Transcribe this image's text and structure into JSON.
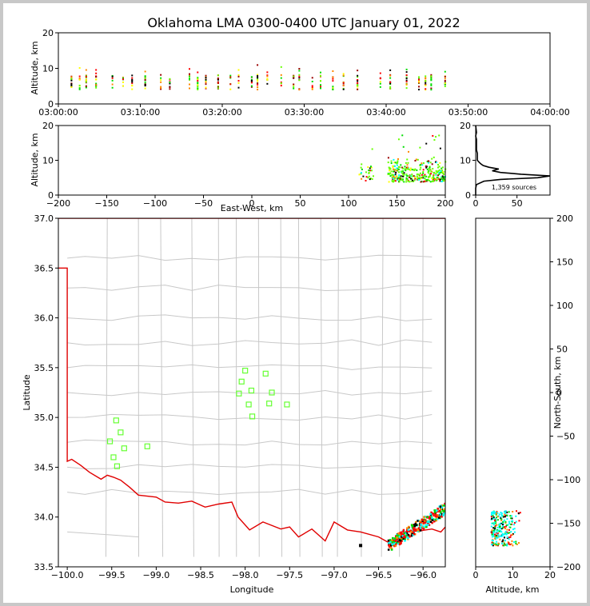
{
  "colors": {
    "frame": "#c8c8c8",
    "state_border": "#e00000",
    "county_lines": "#c8c8c8",
    "stations": "#66ff33",
    "source_palette": [
      "#00ffff",
      "#00dd00",
      "#66ff00",
      "#ffff00",
      "#ff8800",
      "#ff0000",
      "#990000",
      "#000000"
    ]
  },
  "chart_data": [
    {
      "panel": "altitude-time",
      "type": "scatter",
      "title": "Oklahoma LMA 0300-0400 UTC January 01, 2022",
      "ylabel": "Altitude, km",
      "xlim": [
        "03:00:00",
        "04:00:00"
      ],
      "ylim": [
        0,
        20
      ],
      "xticks": [
        "03:00:00",
        "03:10:00",
        "03:20:00",
        "03:30:00",
        "03:40:00",
        "03:50:00",
        "04:00:00"
      ],
      "yticks": [
        "0",
        "10",
        "20"
      ],
      "source_columns_min": [
        1.6,
        2.6,
        3.4,
        4.6,
        6.6,
        7.9,
        9.0,
        10.6,
        12.5,
        13.6,
        16.0,
        17.0,
        18.0,
        19.5,
        21.0,
        22.0,
        23.6,
        24.3,
        25.5,
        27.2,
        28.7,
        29.4,
        31.0,
        32.0,
        33.5,
        34.8,
        36.5,
        39.3,
        40.5,
        42.5,
        44.0,
        44.8,
        45.5,
        47.2
      ],
      "source_alt_range_km": [
        4,
        11
      ]
    },
    {
      "panel": "altitude-eastwest",
      "type": "scatter",
      "xlabel": "East-West, km",
      "ylabel": "Altitude, km",
      "xlim": [
        -200,
        200
      ],
      "ylim": [
        0,
        20
      ],
      "xticks": [
        "−200",
        "−150",
        "−100",
        "−50",
        "0",
        "50",
        "100",
        "150",
        "200"
      ],
      "yticks": [
        "0",
        "10",
        "20"
      ],
      "source_x_range_km": [
        110,
        200
      ],
      "source_alt_range_km": [
        4,
        12
      ]
    },
    {
      "panel": "altitude-histogram",
      "type": "line",
      "annotation": "1,359 sources",
      "xlim": [
        0,
        90
      ],
      "ylim": [
        0,
        20
      ],
      "xticks": [
        "0",
        "50"
      ],
      "yticks": [
        "0",
        "10",
        "20"
      ],
      "alt": [
        0,
        2,
        3,
        4,
        4.5,
        5,
        5.5,
        6,
        6.5,
        7,
        7.5,
        8,
        8.5,
        9,
        9.5,
        10,
        11,
        12,
        13,
        14,
        15,
        16,
        17,
        18,
        20
      ],
      "count": [
        0,
        0,
        1,
        10,
        30,
        75,
        90,
        55,
        30,
        20,
        28,
        16,
        9,
        6,
        4,
        2,
        2,
        2,
        1,
        1,
        1,
        1,
        0,
        1,
        0
      ]
    },
    {
      "panel": "plan-view",
      "type": "scatter",
      "xlabel": "Longitude",
      "ylabel": "Latitude",
      "xlim": [
        -100.1,
        -95.75
      ],
      "ylim": [
        33.5,
        37.0
      ],
      "xticks": [
        "−100.0",
        "−99.5",
        "−99.0",
        "−98.5",
        "−98.0",
        "−97.5",
        "−97.0",
        "−96.5",
        "−96.0"
      ],
      "yticks": [
        "33.5",
        "34.0",
        "34.5",
        "35.0",
        "35.5",
        "36.0",
        "36.5",
        "37.0"
      ],
      "stations": [
        [
          -99.45,
          34.97
        ],
        [
          -99.4,
          34.85
        ],
        [
          -99.52,
          34.76
        ],
        [
          -99.36,
          34.69
        ],
        [
          -99.48,
          34.6
        ],
        [
          -99.44,
          34.51
        ],
        [
          -99.1,
          34.71
        ],
        [
          -98.0,
          35.47
        ],
        [
          -98.04,
          35.36
        ],
        [
          -98.07,
          35.24
        ],
        [
          -97.93,
          35.27
        ],
        [
          -97.96,
          35.13
        ],
        [
          -97.92,
          35.01
        ],
        [
          -97.77,
          35.44
        ],
        [
          -97.7,
          35.25
        ],
        [
          -97.73,
          35.14
        ],
        [
          -97.53,
          35.13
        ]
      ],
      "source_cluster": {
        "lon_range": [
          -96.75,
          -95.75
        ],
        "lat_range": [
          33.7,
          34.15
        ]
      }
    },
    {
      "panel": "northsouth-altitude",
      "type": "scatter",
      "xlabel": "Altitude, km",
      "ylabel": "North-South, km",
      "xlim": [
        0,
        20
      ],
      "ylim": [
        -200,
        200
      ],
      "xticks": [
        "0",
        "10",
        "20"
      ],
      "yticks": [
        "−200",
        "−150",
        "−100",
        "−50",
        "0",
        "50",
        "100",
        "150",
        "200"
      ],
      "source_alt_range_km": [
        4,
        12
      ],
      "source_ns_range_km": [
        -175,
        -135
      ]
    }
  ]
}
